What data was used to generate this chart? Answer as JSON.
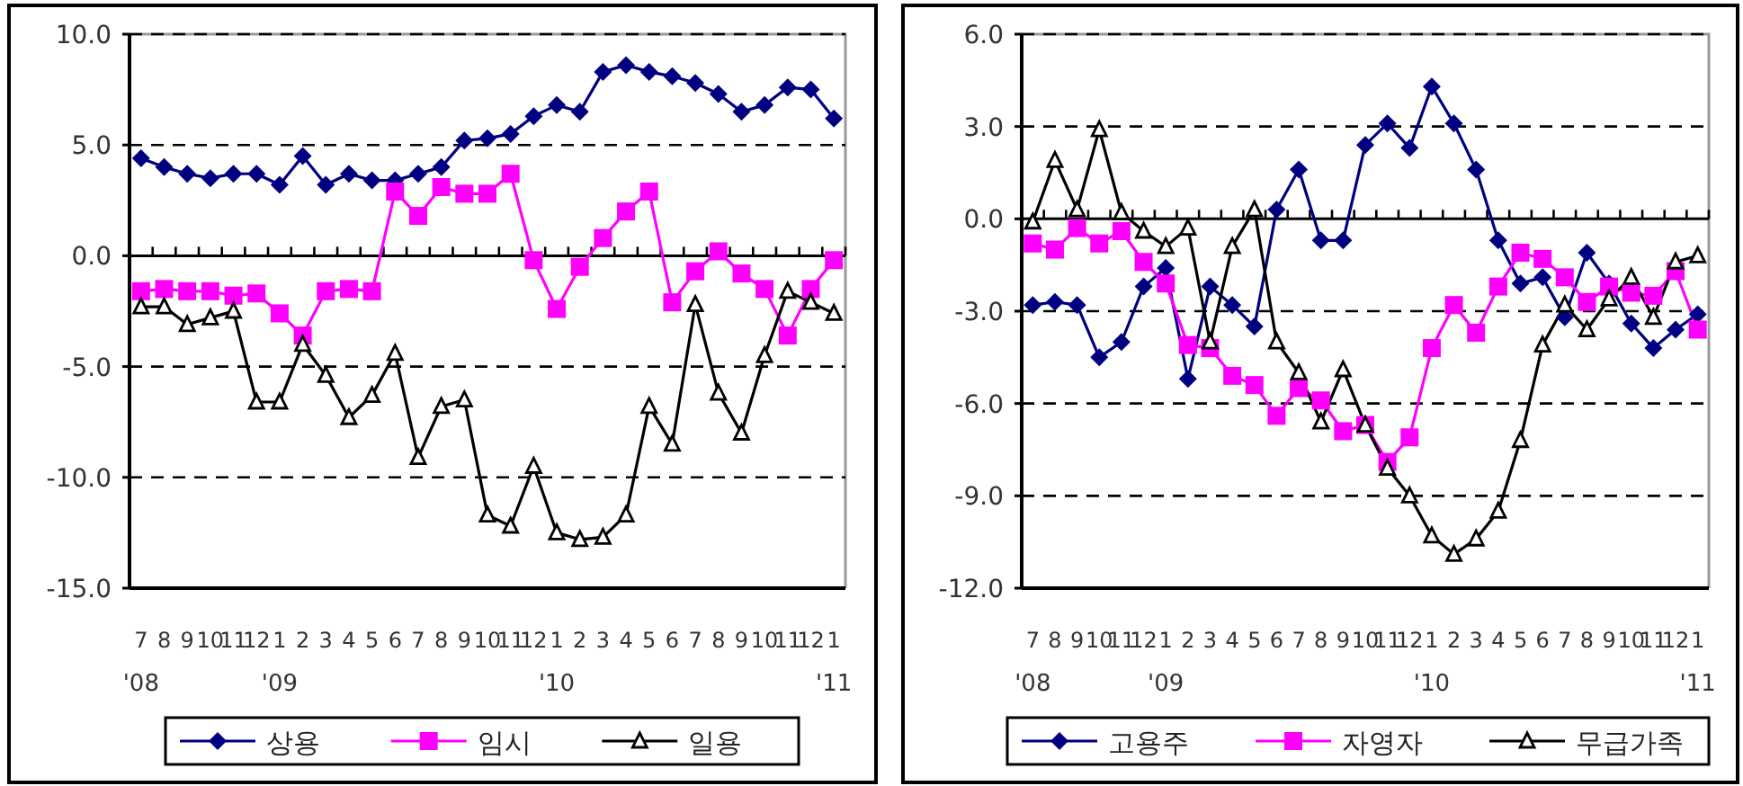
{
  "chart_data": [
    {
      "type": "line",
      "categories": [
        "7\n'08",
        "8",
        "9",
        "10",
        "11",
        "12",
        "1\n'09",
        "2",
        "3",
        "4",
        "5",
        "6",
        "7",
        "8",
        "9",
        "10",
        "11",
        "12",
        "1\n'10",
        "2",
        "3",
        "4",
        "5",
        "6",
        "7",
        "8",
        "9",
        "10",
        "11",
        "12",
        "1\n'11"
      ],
      "ylim": [
        -15,
        10
      ],
      "yticks": [
        {
          "value": -15,
          "label": "-15.0"
        },
        {
          "value": -10,
          "label": "-10.0"
        },
        {
          "value": -5,
          "label": "-5.0"
        },
        {
          "value": 0,
          "label": "0.0"
        },
        {
          "value": 5,
          "label": "5.0"
        },
        {
          "value": 10,
          "label": "10.0"
        }
      ],
      "grid": "y",
      "legend": "bottom",
      "line_style": "solid",
      "series": [
        {
          "name": "상용",
          "color": "#000080",
          "marker": "diamond",
          "values": [
            4.4,
            4.0,
            3.7,
            3.5,
            3.7,
            3.7,
            3.2,
            4.5,
            3.2,
            3.7,
            3.4,
            3.4,
            3.7,
            4.0,
            5.2,
            5.3,
            5.5,
            6.3,
            6.8,
            6.5,
            8.3,
            8.6,
            8.3,
            8.1,
            7.8,
            7.3,
            6.5,
            6.8,
            7.6,
            7.5,
            6.2
          ]
        },
        {
          "name": "임시",
          "color": "#ff00ff",
          "marker": "square",
          "values": [
            -1.6,
            -1.5,
            -1.6,
            -1.6,
            -1.8,
            -1.7,
            -2.6,
            -3.6,
            -1.6,
            -1.5,
            -1.6,
            2.9,
            1.8,
            3.1,
            2.8,
            2.8,
            3.7,
            -0.2,
            -2.4,
            -0.5,
            0.8,
            2.0,
            2.9,
            -2.1,
            -0.7,
            0.2,
            -0.8,
            -1.5,
            -3.6,
            -1.5,
            -0.2
          ]
        },
        {
          "name": "일용",
          "color": "#000000",
          "marker": "triangle",
          "values": [
            -2.3,
            -2.3,
            -3.1,
            -2.8,
            -2.5,
            -6.6,
            -6.6,
            -4.0,
            -5.4,
            -7.3,
            -6.3,
            -4.4,
            -9.1,
            -6.8,
            -6.5,
            -11.7,
            -12.2,
            -9.5,
            -12.5,
            -12.8,
            -12.7,
            -11.7,
            -6.8,
            -8.5,
            -2.2,
            -6.2,
            -8.0,
            -4.5,
            -1.6,
            -2.1,
            -2.6
          ]
        }
      ]
    },
    {
      "type": "line",
      "categories": [
        "7\n'08",
        "8",
        "9",
        "10",
        "11",
        "12",
        "1\n'09",
        "2",
        "3",
        "4",
        "5",
        "6",
        "7",
        "8",
        "9",
        "10",
        "11",
        "12",
        "1\n'10",
        "2",
        "3",
        "4",
        "5",
        "6",
        "7",
        "8",
        "9",
        "10",
        "11",
        "12",
        "1\n'11"
      ],
      "ylim": [
        -12,
        6
      ],
      "yticks": [
        {
          "value": -12,
          "label": "-12.0"
        },
        {
          "value": -9,
          "label": "-9.0"
        },
        {
          "value": -6,
          "label": "-6.0"
        },
        {
          "value": -3,
          "label": "-3.0"
        },
        {
          "value": 0,
          "label": "0.0"
        },
        {
          "value": 3,
          "label": "3.0"
        },
        {
          "value": 6,
          "label": "6.0"
        }
      ],
      "grid": "y",
      "legend": "bottom",
      "line_style": "solid",
      "series": [
        {
          "name": "고용주",
          "color": "#000080",
          "marker": "diamond",
          "values": [
            -2.8,
            -2.7,
            -2.8,
            -4.5,
            -4.0,
            -2.2,
            -1.6,
            -5.2,
            -2.2,
            -2.8,
            -3.5,
            0.3,
            1.6,
            -0.7,
            -0.7,
            2.4,
            3.1,
            2.3,
            4.3,
            3.1,
            1.6,
            -0.7,
            -2.1,
            -1.9,
            -3.2,
            -1.1,
            -2.1,
            -3.4,
            -4.2,
            -3.6,
            -3.1
          ]
        },
        {
          "name": "자영자",
          "color": "#ff00ff",
          "marker": "square",
          "values": [
            -0.8,
            -1.0,
            -0.3,
            -0.8,
            -0.4,
            -1.4,
            -2.1,
            -4.1,
            -4.2,
            -5.1,
            -5.4,
            -6.4,
            -5.5,
            -5.9,
            -6.9,
            -6.7,
            -7.9,
            -7.1,
            -4.2,
            -2.8,
            -3.7,
            -2.2,
            -1.1,
            -1.3,
            -1.9,
            -2.7,
            -2.2,
            -2.4,
            -2.5,
            -1.7,
            -3.6
          ]
        },
        {
          "name": "무급가족",
          "color": "#000000",
          "marker": "triangle",
          "values": [
            -0.1,
            1.9,
            0.3,
            2.9,
            0.2,
            -0.4,
            -0.9,
            -0.3,
            -4.0,
            -0.9,
            0.3,
            -4.0,
            -5.0,
            -6.6,
            -4.9,
            -6.7,
            -8.1,
            -9.0,
            -10.3,
            -10.9,
            -10.4,
            -9.5,
            -7.2,
            -4.1,
            -2.8,
            -3.6,
            -2.6,
            -1.9,
            -3.2,
            -1.4,
            -1.2
          ]
        }
      ]
    }
  ]
}
